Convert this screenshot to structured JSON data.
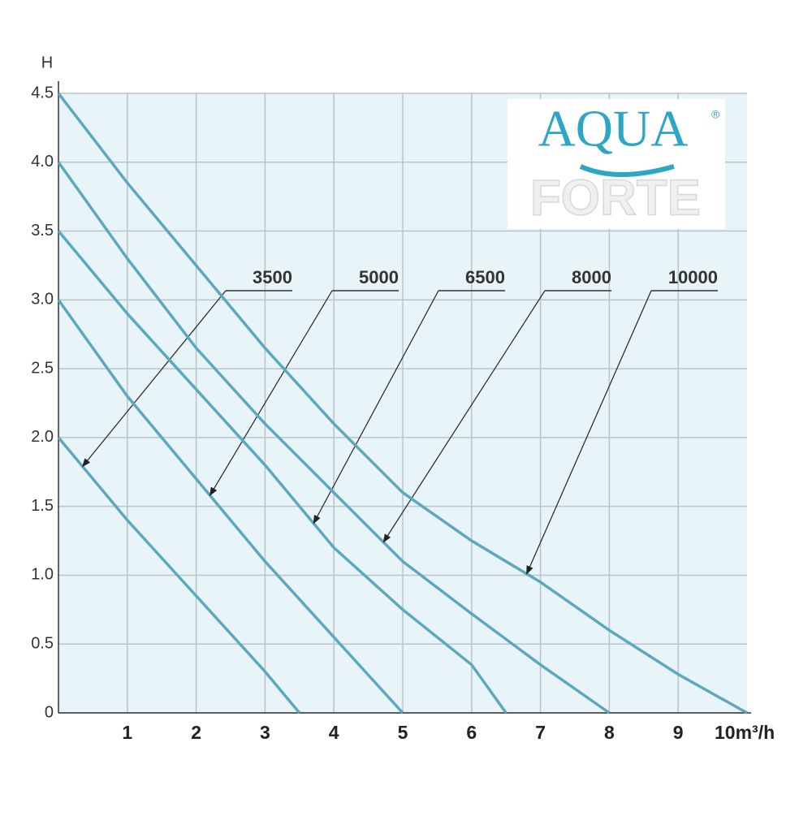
{
  "chart_data": {
    "type": "line",
    "y_label": "H",
    "logo": {
      "main": "AQUA",
      "sub": "FORTE",
      "mark": "®"
    },
    "xlim": [
      0,
      10
    ],
    "ylim": [
      0,
      4.5
    ],
    "xticks": [
      1,
      2,
      3,
      4,
      5,
      6,
      7,
      8,
      9,
      {
        "value": 10,
        "label": "10m³/h"
      }
    ],
    "yticks": [
      0,
      {
        "value": 0.5,
        "label": "0.5"
      },
      {
        "value": 1,
        "label": "1.0"
      },
      {
        "value": 1.5,
        "label": "1.5"
      },
      {
        "value": 2,
        "label": "2.0"
      },
      {
        "value": 2.5,
        "label": "2.5"
      },
      {
        "value": 3,
        "label": "3.0"
      },
      {
        "value": 3.5,
        "label": "3.5"
      },
      {
        "value": 4,
        "label": "4.0"
      },
      {
        "value": 4.5,
        "label": "4.5"
      }
    ],
    "grid": true,
    "series": [
      {
        "name": "3500",
        "color": "#5aa9bf",
        "x": [
          0,
          1,
          2,
          3,
          3.5
        ],
        "values": [
          2.0,
          1.4,
          0.85,
          0.3,
          0
        ]
      },
      {
        "name": "5000",
        "color": "#5aa9bf",
        "x": [
          0,
          1,
          2,
          3,
          4,
          5
        ],
        "values": [
          3.0,
          2.3,
          1.7,
          1.1,
          0.55,
          0
        ]
      },
      {
        "name": "6500",
        "color": "#5aa9bf",
        "x": [
          0,
          1,
          2,
          3,
          4,
          5,
          6,
          6.5
        ],
        "values": [
          3.5,
          2.9,
          2.35,
          1.8,
          1.2,
          0.75,
          0.35,
          0
        ]
      },
      {
        "name": "8000",
        "color": "#5aa9bf",
        "x": [
          0,
          1,
          2,
          3,
          4,
          5,
          6,
          7,
          8
        ],
        "values": [
          4.0,
          3.3,
          2.65,
          2.1,
          1.6,
          1.1,
          0.72,
          0.35,
          0
        ]
      },
      {
        "name": "10000",
        "color": "#5aa9bf",
        "x": [
          0,
          1,
          2,
          3,
          4,
          5,
          6,
          7,
          8,
          9,
          10
        ],
        "values": [
          4.5,
          3.85,
          3.25,
          2.65,
          2.1,
          1.6,
          1.25,
          0.95,
          0.6,
          0.28,
          0
        ]
      }
    ]
  }
}
